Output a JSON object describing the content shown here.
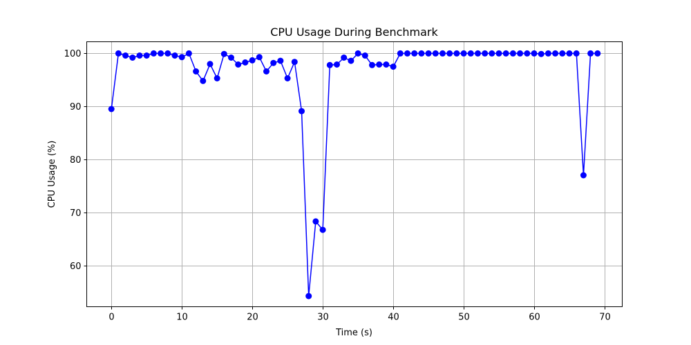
{
  "chart_data": {
    "type": "line",
    "title": "CPU Usage During Benchmark",
    "xlabel": "Time (s)",
    "ylabel": "CPU Usage (%)",
    "xlim": [
      -3.5,
      72.5
    ],
    "ylim": [
      52.2,
      102.2
    ],
    "xticks": [
      0,
      10,
      20,
      30,
      40,
      50,
      60,
      70
    ],
    "yticks": [
      60,
      70,
      80,
      90,
      100
    ],
    "grid": true,
    "legend": "none",
    "color": "#0000ff",
    "marker": "circle",
    "series": [
      {
        "x": [
          0,
          1,
          2,
          3,
          4,
          5,
          6,
          7,
          8,
          9,
          10,
          11,
          12,
          13,
          14,
          15,
          16,
          17,
          18,
          19,
          20,
          21,
          22,
          23,
          24,
          25,
          26,
          27,
          28,
          29,
          30,
          31,
          32,
          33,
          34,
          35,
          36,
          37,
          38,
          39,
          40,
          41,
          42,
          43,
          44,
          45,
          46,
          47,
          48,
          49,
          50,
          51,
          52,
          53,
          54,
          55,
          56,
          57,
          58,
          59,
          60,
          61,
          62,
          63,
          64,
          65,
          66,
          67,
          68,
          69
        ],
        "values": [
          89.5,
          100,
          99.6,
          99.2,
          99.6,
          99.6,
          100,
          100,
          100,
          99.6,
          99.3,
          100,
          96.6,
          94.8,
          98.0,
          95.3,
          99.9,
          99.2,
          97.9,
          98.3,
          98.7,
          99.3,
          96.6,
          98.2,
          98.6,
          95.3,
          98.4,
          89.1,
          54.2,
          68.3,
          66.7,
          97.8,
          97.9,
          99.2,
          98.6,
          100,
          99.6,
          97.8,
          97.9,
          97.9,
          97.5,
          100,
          100,
          100,
          100,
          100,
          100,
          100,
          100,
          100,
          100,
          100,
          100,
          100,
          100,
          100,
          100,
          100,
          100,
          100,
          100,
          99.9,
          100,
          100,
          100,
          100,
          100,
          77.0,
          100,
          100
        ]
      }
    ]
  }
}
